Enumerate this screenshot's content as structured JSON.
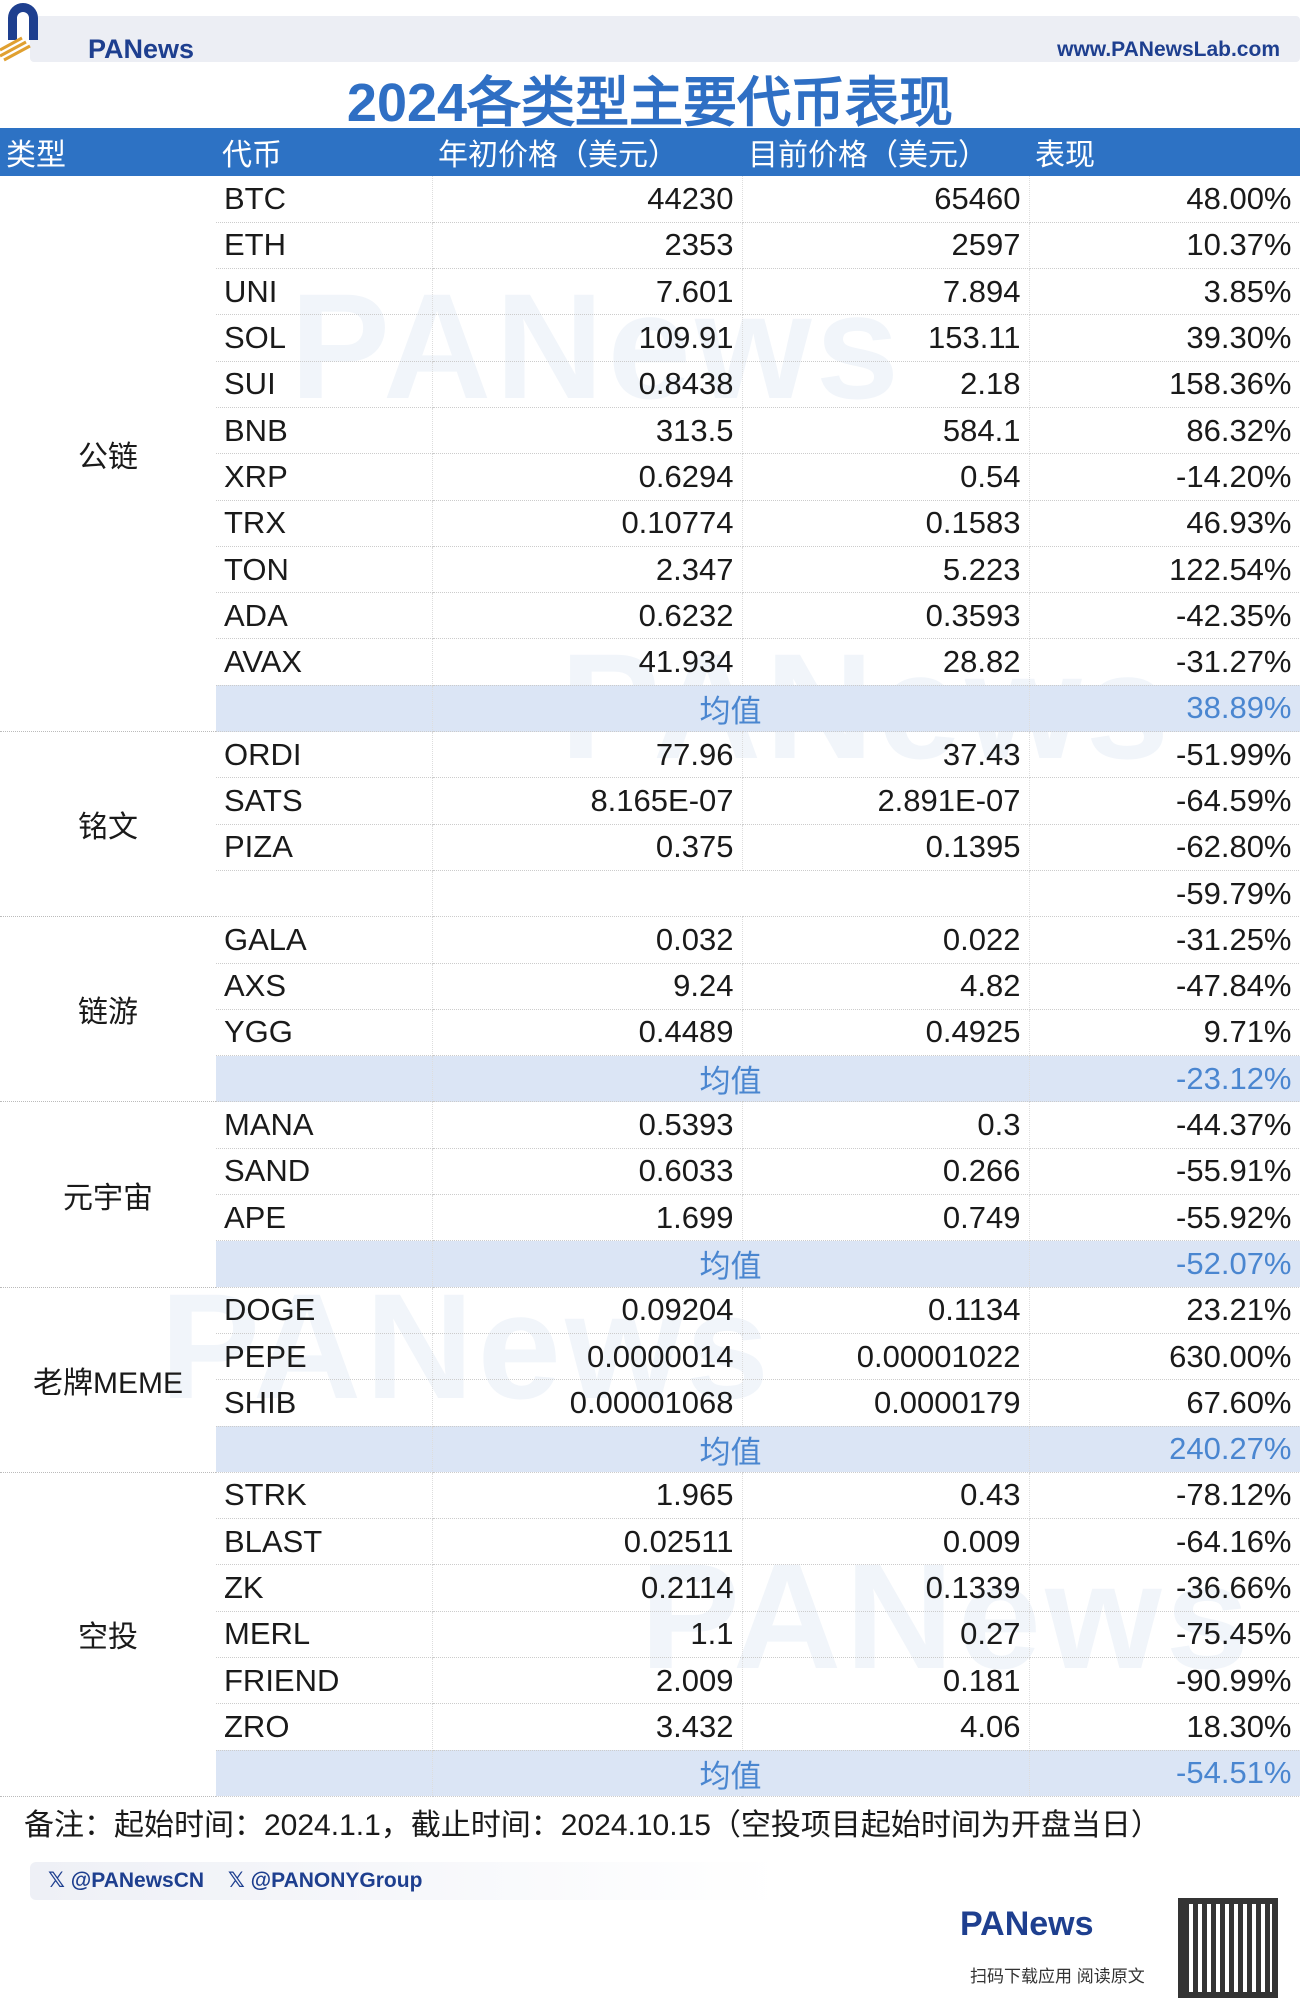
{
  "header": {
    "brand": "PANews",
    "site": "www.PANewsLab.com"
  },
  "title": "2024各类型主要代币表现",
  "columns": [
    "类型",
    "代币",
    "年初价格（美元）",
    "目前价格（美元）",
    "表现"
  ],
  "avg_label": "均值",
  "groups": [
    {
      "type": "公链",
      "rows": [
        [
          "BTC",
          "44230",
          "65460",
          "48.00%"
        ],
        [
          "ETH",
          "2353",
          "2597",
          "10.37%"
        ],
        [
          "UNI",
          "7.601",
          "7.894",
          "3.85%"
        ],
        [
          "SOL",
          "109.91",
          "153.11",
          "39.30%"
        ],
        [
          "SUI",
          "0.8438",
          "2.18",
          "158.36%"
        ],
        [
          "BNB",
          "313.5",
          "584.1",
          "86.32%"
        ],
        [
          "XRP",
          "0.6294",
          "0.54",
          "-14.20%"
        ],
        [
          "TRX",
          "0.10774",
          "0.1583",
          "46.93%"
        ],
        [
          "TON",
          "2.347",
          "5.223",
          "122.54%"
        ],
        [
          "ADA",
          "0.6232",
          "0.3593",
          "-42.35%"
        ],
        [
          "AVAX",
          "41.934",
          "28.82",
          "-31.27%"
        ]
      ],
      "avg": "38.89%",
      "avg_labeled": true
    },
    {
      "type": "铭文",
      "rows": [
        [
          "ORDI",
          "77.96",
          "37.43",
          "-51.99%"
        ],
        [
          "SATS",
          "8.165E-07",
          "2.891E-07",
          "-64.59%"
        ],
        [
          "PIZA",
          "0.375",
          "0.1395",
          "-62.80%"
        ]
      ],
      "avg": "-59.79%",
      "avg_labeled": false
    },
    {
      "type": "链游",
      "rows": [
        [
          "GALA",
          "0.032",
          "0.022",
          "-31.25%"
        ],
        [
          "AXS",
          "9.24",
          "4.82",
          "-47.84%"
        ],
        [
          "YGG",
          "0.4489",
          "0.4925",
          "9.71%"
        ]
      ],
      "avg": "-23.12%",
      "avg_labeled": true
    },
    {
      "type": "元宇宙",
      "rows": [
        [
          "MANA",
          "0.5393",
          "0.3",
          "-44.37%"
        ],
        [
          "SAND",
          "0.6033",
          "0.266",
          "-55.91%"
        ],
        [
          "APE",
          "1.699",
          "0.749",
          "-55.92%"
        ]
      ],
      "avg": "-52.07%",
      "avg_labeled": true
    },
    {
      "type": "老牌MEME",
      "rows": [
        [
          "DOGE",
          "0.09204",
          "0.1134",
          "23.21%"
        ],
        [
          "PEPE",
          "0.0000014",
          "0.00001022",
          "630.00%"
        ],
        [
          "SHIB",
          "0.00001068",
          "0.0000179",
          "67.60%"
        ]
      ],
      "avg": "240.27%",
      "avg_labeled": true
    },
    {
      "type": "空投",
      "rows": [
        [
          "STRK",
          "1.965",
          "0.43",
          "-78.12%"
        ],
        [
          "BLAST",
          "0.02511",
          "0.009",
          "-64.16%"
        ],
        [
          "ZK",
          "0.2114",
          "0.1339",
          "-36.66%"
        ],
        [
          "MERL",
          "1.1",
          "0.27",
          "-75.45%"
        ],
        [
          "FRIEND",
          "2.009",
          "0.181",
          "-90.99%"
        ],
        [
          "ZRO",
          "3.432",
          "4.06",
          "18.30%"
        ]
      ],
      "avg": "-54.51%",
      "avg_labeled": true
    }
  ],
  "note": "备注：起始时间：2024.1.1，截止时间：2024.10.15（空投项目起始时间为开盘当日）",
  "social": [
    "@PANewsCN",
    "@PANONYGroup"
  ],
  "footer": {
    "brand": "PANews",
    "download": "扫码下载应用  阅读原文"
  },
  "colors": {
    "accent": "#2d72c4",
    "avg_bg": "#dbe5f5",
    "avg_text": "#4a86d0"
  }
}
